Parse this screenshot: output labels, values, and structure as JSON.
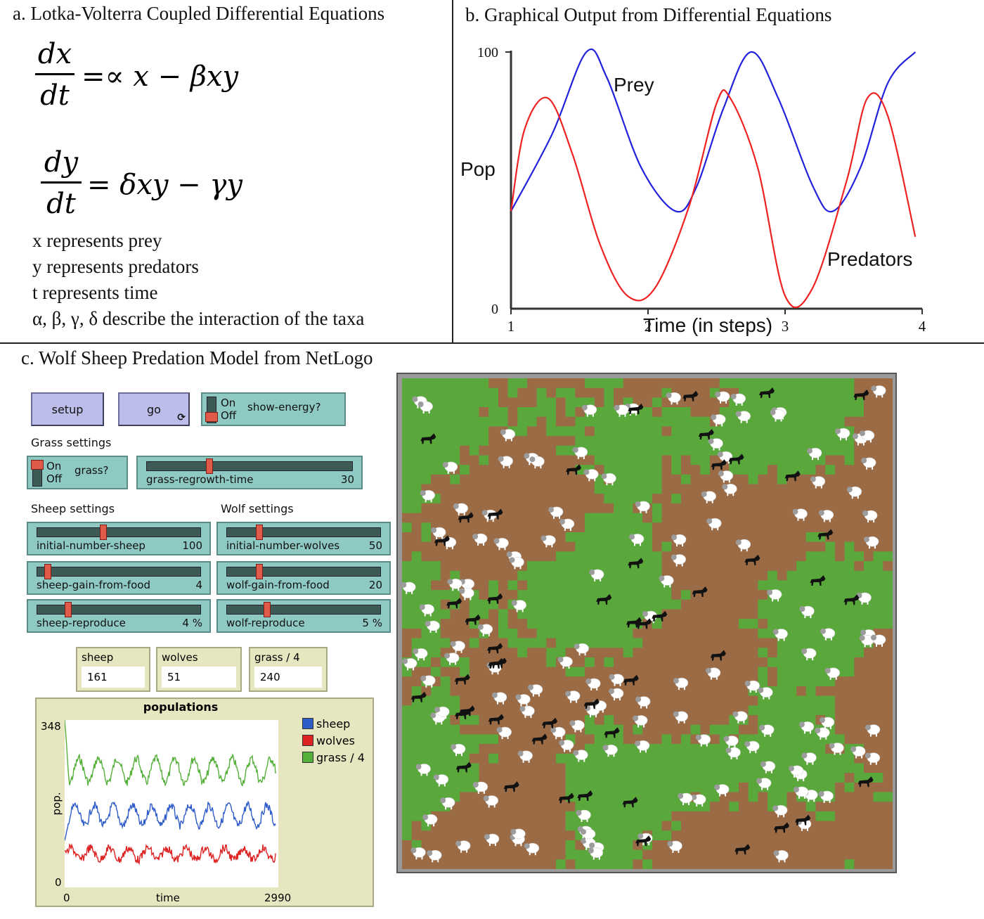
{
  "panel_a": {
    "title": "a. Lotka-Volterra Coupled Differential Equations",
    "eq1": {
      "num": "dx",
      "den": "dt",
      "rhs": "=∝ x − βxy"
    },
    "eq2": {
      "num": "dy",
      "den": "dt",
      "rhs": "= δxy − γy"
    },
    "definitions": [
      "x represents prey",
      "y represents predators",
      "t represents time",
      "α, β, γ, δ describe the interaction of the taxa"
    ]
  },
  "panel_b": {
    "title": "b. Graphical Output from Differential Equations",
    "chart_data": {
      "type": "line",
      "xlabel": "Time (in steps)",
      "ylabel": "Pop",
      "xlim": [
        1,
        4
      ],
      "ylim": [
        0,
        100
      ],
      "x_ticks": [
        "1",
        "2",
        "3",
        "4"
      ],
      "y_ticks": [
        "0",
        "100"
      ],
      "series": [
        {
          "name": "Prey",
          "color": "#2222dd",
          "x": [
            1.0,
            1.3,
            1.55,
            1.7,
            1.95,
            2.2,
            2.35,
            2.55,
            2.75,
            2.95,
            3.2,
            3.35,
            3.55,
            3.75,
            3.95
          ],
          "values": [
            38,
            68,
            100,
            90,
            55,
            38,
            47,
            78,
            100,
            82,
            48,
            38,
            55,
            88,
            100
          ]
        },
        {
          "name": "Predators",
          "color": "#ee2222",
          "x": [
            1.0,
            1.1,
            1.27,
            1.45,
            1.65,
            1.85,
            2.05,
            2.3,
            2.5,
            2.6,
            2.8,
            3.0,
            3.2,
            3.45,
            3.6,
            3.75,
            3.95
          ],
          "values": [
            38,
            70,
            82,
            60,
            25,
            5,
            8,
            40,
            80,
            82,
            55,
            5,
            8,
            50,
            82,
            75,
            28
          ]
        }
      ]
    }
  },
  "panel_c": {
    "title": "c. Wolf Sheep Predation Model from NetLogo",
    "buttons": {
      "setup": "setup",
      "go": "go",
      "go_icon": "forever-icon"
    },
    "show_energy": {
      "on": "On",
      "off": "Off",
      "label": "show-energy?"
    },
    "grass_section": "Grass settings",
    "grass_switch": {
      "on": "On",
      "off": "Off",
      "label": "grass?"
    },
    "grass_slider": {
      "label": "grass-regrowth-time",
      "value": "30",
      "fraction": 0.3
    },
    "sheep_section": "Sheep settings",
    "wolf_section": "Wolf settings",
    "sliders": [
      {
        "label": "initial-number-sheep",
        "value": "100",
        "fraction": 0.4
      },
      {
        "label": "initial-number-wolves",
        "value": "50",
        "fraction": 0.2
      },
      {
        "label": "sheep-gain-from-food",
        "value": "4",
        "fraction": 0.05
      },
      {
        "label": "wolf-gain-from-food",
        "value": "20",
        "fraction": 0.2
      },
      {
        "label": "sheep-reproduce",
        "value": "4 %",
        "fraction": 0.18
      },
      {
        "label": "wolf-reproduce",
        "value": "5 %",
        "fraction": 0.25
      }
    ],
    "monitors": [
      {
        "label": "sheep",
        "value": "161"
      },
      {
        "label": "wolves",
        "value": "51"
      },
      {
        "label": "grass / 4",
        "value": "240"
      }
    ],
    "plot": {
      "title": "populations",
      "xlabel": "time",
      "ylabel": "pop.",
      "y_max": "348",
      "y_min": "0",
      "x_min": "0",
      "x_max": "2990",
      "legend": [
        {
          "name": "sheep",
          "color": "#2f5cc8"
        },
        {
          "name": "wolves",
          "color": "#dd2222"
        },
        {
          "name": "grass / 4",
          "color": "#55b03a"
        }
      ]
    },
    "world_colors": {
      "grass": "#5aa83c",
      "dirt": "#9b6b45"
    }
  }
}
